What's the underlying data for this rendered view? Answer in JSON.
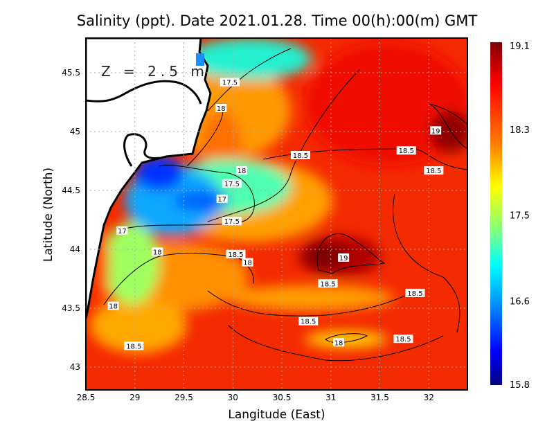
{
  "title": "Salinity (ppt). Date 2021.01.28. Time 00(h):00(m) GMT",
  "depth_label": "Z = 2.5 m",
  "xlabel": "Langitude (East)",
  "ylabel": "Latitude (North)",
  "x_ticks": [
    "28.5",
    "29",
    "29.5",
    "30",
    "30.5",
    "31",
    "31.5",
    "32"
  ],
  "y_ticks": [
    "43",
    "43.5",
    "44",
    "44.5",
    "45",
    "45.5"
  ],
  "colorbar": {
    "min": 15.8,
    "max": 19.1,
    "labels": [
      "19.1",
      "18.3",
      "17.5",
      "16.6",
      "15.8"
    ],
    "colors": [
      "#7f0000",
      "#ff0000",
      "#ff8000",
      "#ffff00",
      "#80ff80",
      "#00ffff",
      "#0080ff",
      "#0000ff",
      "#00007f"
    ]
  },
  "contour_labels": [
    {
      "text": "17.5",
      "lon": 29.97,
      "lat": 45.42
    },
    {
      "text": "18",
      "lon": 29.88,
      "lat": 45.2
    },
    {
      "text": "19",
      "lon": 32.07,
      "lat": 45.01
    },
    {
      "text": "18.5",
      "lon": 30.69,
      "lat": 44.8
    },
    {
      "text": "18.5",
      "lon": 31.77,
      "lat": 44.84
    },
    {
      "text": "18",
      "lon": 30.09,
      "lat": 44.67
    },
    {
      "text": "18.5",
      "lon": 32.05,
      "lat": 44.67
    },
    {
      "text": "17.5",
      "lon": 29.99,
      "lat": 44.56
    },
    {
      "text": "17",
      "lon": 29.89,
      "lat": 44.43
    },
    {
      "text": "17.5",
      "lon": 29.99,
      "lat": 44.24
    },
    {
      "text": "17",
      "lon": 28.87,
      "lat": 44.16
    },
    {
      "text": "18",
      "lon": 29.23,
      "lat": 43.98
    },
    {
      "text": "18.5",
      "lon": 30.03,
      "lat": 43.96
    },
    {
      "text": "18",
      "lon": 30.15,
      "lat": 43.89
    },
    {
      "text": "19",
      "lon": 31.13,
      "lat": 43.93
    },
    {
      "text": "18.5",
      "lon": 30.97,
      "lat": 43.71
    },
    {
      "text": "18.5",
      "lon": 31.86,
      "lat": 43.63
    },
    {
      "text": "18",
      "lon": 28.78,
      "lat": 43.52
    },
    {
      "text": "18.5",
      "lon": 30.77,
      "lat": 43.39
    },
    {
      "text": "18",
      "lon": 31.08,
      "lat": 43.21
    },
    {
      "text": "18.5",
      "lon": 31.74,
      "lat": 43.24
    },
    {
      "text": "18.5",
      "lon": 28.99,
      "lat": 43.18
    }
  ]
}
